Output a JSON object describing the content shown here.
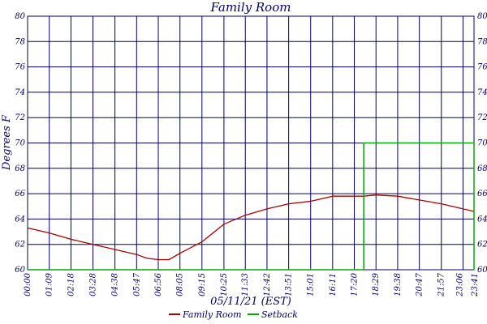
{
  "chart_data": {
    "type": "line",
    "title": "Family Room",
    "xlabel": "05/11/21 (EST)",
    "ylabel": "Degrees F",
    "ylim": [
      60,
      80
    ],
    "y_ticks": [
      60,
      62,
      64,
      66,
      68,
      70,
      72,
      74,
      76,
      78,
      80
    ],
    "x_ticks": [
      "00:00",
      "01:09",
      "02:18",
      "03:28",
      "04:38",
      "05:47",
      "06:56",
      "08:05",
      "09:15",
      "10:25",
      "11:33",
      "12:42",
      "13:51",
      "15:01",
      "16:11",
      "17:20",
      "18:29",
      "19:38",
      "20:47",
      "21:57",
      "23:06",
      "23:41"
    ],
    "grid": true,
    "legend_position": "bottom",
    "colors": {
      "text": "#000066",
      "grid": "#000066",
      "family_room": "#aa0000",
      "setback": "#00aa00"
    },
    "series": [
      {
        "name": "Family Room",
        "color": "#aa0000",
        "x": [
          "00:00",
          "01:09",
          "02:18",
          "03:28",
          "04:38",
          "05:47",
          "06:20",
          "06:56",
          "07:30",
          "08:05",
          "09:15",
          "10:25",
          "11:33",
          "12:42",
          "13:51",
          "15:01",
          "16:11",
          "17:20",
          "17:50",
          "18:29",
          "19:38",
          "20:47",
          "21:57",
          "23:06",
          "23:41"
        ],
        "y": [
          63.3,
          62.9,
          62.4,
          62.0,
          61.6,
          61.2,
          60.9,
          60.8,
          60.8,
          61.3,
          62.2,
          63.6,
          64.3,
          64.8,
          65.2,
          65.4,
          65.8,
          65.8,
          65.8,
          65.9,
          65.8,
          65.5,
          65.2,
          64.8,
          64.6
        ]
      },
      {
        "name": "Setback",
        "color": "#00aa00",
        "x": [
          "00:00",
          "17:50",
          "17:50",
          "23:41",
          "23:41"
        ],
        "y": [
          60,
          60,
          70,
          70,
          60
        ]
      }
    ]
  }
}
